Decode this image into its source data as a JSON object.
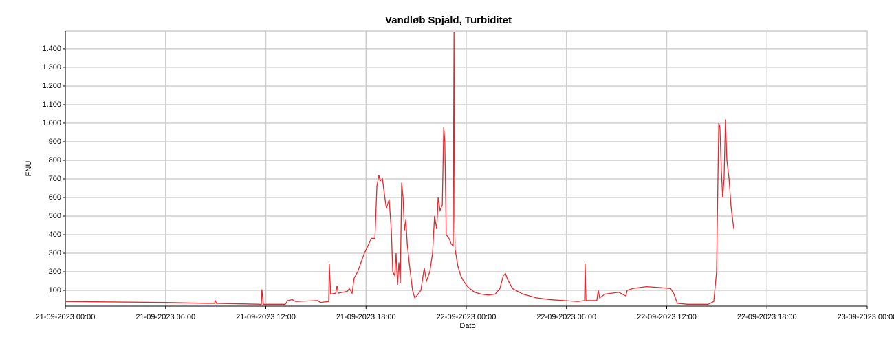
{
  "chart_data": {
    "type": "line",
    "title": "Vandløb Spjald, Turbiditet",
    "x_label": "Dato",
    "y_label": "FNU",
    "grid": true,
    "xlim": [
      "2023-09-21T00:00",
      "2023-09-23T00:00"
    ],
    "xticks": [
      {
        "value": "2023-09-21T00:00",
        "label": "21-09-2023 00:00"
      },
      {
        "value": "2023-09-21T06:00",
        "label": "21-09-2023 06:00"
      },
      {
        "value": "2023-09-21T12:00",
        "label": "21-09-2023 12:00"
      },
      {
        "value": "2023-09-21T18:00",
        "label": "21-09-2023 18:00"
      },
      {
        "value": "2023-09-22T00:00",
        "label": "22-09-2023 00:00"
      },
      {
        "value": "2023-09-22T06:00",
        "label": "22-09-2023 06:00"
      },
      {
        "value": "2023-09-22T12:00",
        "label": "22-09-2023 12:00"
      },
      {
        "value": "2023-09-22T18:00",
        "label": "22-09-2023 18:00"
      },
      {
        "value": "2023-09-23T00:00",
        "label": "23-09-2023 00:00"
      }
    ],
    "ylim": [
      15,
      1496
    ],
    "yticks": [
      100,
      200,
      300,
      400,
      500,
      600,
      700,
      800,
      900,
      {
        "value": 1000,
        "label": "1.000"
      },
      {
        "value": 1100,
        "label": "1.100"
      },
      {
        "value": 1200,
        "label": "1.200"
      },
      {
        "value": 1300,
        "label": "1.300"
      },
      {
        "value": 1400,
        "label": "1.400"
      }
    ],
    "x": [
      "2023-09-21T00:00",
      "2023-09-21T02:16",
      "2023-09-21T05:58",
      "2023-09-21T08:26",
      "2023-09-21T08:56",
      "2023-09-21T08:58",
      "2023-09-21T09:03",
      "2023-09-21T11:44",
      "2023-09-21T11:46",
      "2023-09-21T11:51",
      "2023-09-21T13:10",
      "2023-09-21T13:18",
      "2023-09-21T13:35",
      "2023-09-21T13:47",
      "2023-09-21T15:06",
      "2023-09-21T15:16",
      "2023-09-21T15:46",
      "2023-09-21T15:48",
      "2023-09-21T15:53",
      "2023-09-21T16:11",
      "2023-09-21T16:16",
      "2023-09-21T16:20",
      "2023-09-21T16:53",
      "2023-09-21T17:00",
      "2023-09-21T17:10",
      "2023-09-21T17:17",
      "2023-09-21T17:30",
      "2023-09-21T17:42",
      "2023-09-21T17:54",
      "2023-09-21T18:07",
      "2023-09-21T18:19",
      "2023-09-21T18:32",
      "2023-09-21T18:39",
      "2023-09-21T18:46",
      "2023-09-21T18:51",
      "2023-09-21T18:59",
      "2023-09-21T19:04",
      "2023-09-21T19:13",
      "2023-09-21T19:23",
      "2023-09-21T19:31",
      "2023-09-21T19:36",
      "2023-09-21T19:43",
      "2023-09-21T19:48",
      "2023-09-21T19:53",
      "2023-09-21T19:58",
      "2023-09-21T20:03",
      "2023-09-21T20:08",
      "2023-09-21T20:13",
      "2023-09-21T20:18",
      "2023-09-21T20:23",
      "2023-09-21T20:28",
      "2023-09-21T20:35",
      "2023-09-21T20:47",
      "2023-09-21T20:55",
      "2023-09-21T21:02",
      "2023-09-21T21:17",
      "2023-09-21T21:29",
      "2023-09-21T21:37",
      "2023-09-21T21:49",
      "2023-09-21T21:59",
      "2023-09-21T22:06",
      "2023-09-21T22:14",
      "2023-09-21T22:19",
      "2023-09-21T22:26",
      "2023-09-21T22:34",
      "2023-09-21T22:39",
      "2023-09-21T22:43",
      "2023-09-21T22:48",
      "2023-09-21T22:58",
      "2023-09-21T23:06",
      "2023-09-21T23:13",
      "2023-09-21T23:16",
      "2023-09-21T23:18",
      "2023-09-21T23:20",
      "2023-09-21T23:30",
      "2023-09-21T23:40",
      "2023-09-21T23:50",
      "2023-09-22T00:05",
      "2023-09-22T00:17",
      "2023-09-22T00:30",
      "2023-09-22T00:54",
      "2023-09-22T01:19",
      "2023-09-22T01:44",
      "2023-09-22T02:01",
      "2023-09-22T02:13",
      "2023-09-22T02:21",
      "2023-09-22T02:28",
      "2023-09-22T02:46",
      "2023-09-22T03:23",
      "2023-09-22T04:12",
      "2023-09-22T05:01",
      "2023-09-22T05:51",
      "2023-09-22T06:40",
      "2023-09-22T07:05",
      "2023-09-22T07:07",
      "2023-09-22T07:10",
      "2023-09-22T07:49",
      "2023-09-22T07:54",
      "2023-09-22T07:59",
      "2023-09-22T08:19",
      "2023-09-22T09:08",
      "2023-09-22T09:33",
      "2023-09-22T09:38",
      "2023-09-22T09:58",
      "2023-09-22T10:22",
      "2023-09-22T10:47",
      "2023-09-22T11:37",
      "2023-09-22T12:14",
      "2023-09-22T12:26",
      "2023-09-22T12:38",
      "2023-09-22T13:15",
      "2023-09-22T14:29",
      "2023-09-22T14:49",
      "2023-09-22T14:59",
      "2023-09-22T15:07",
      "2023-09-22T15:11",
      "2023-09-22T15:16",
      "2023-09-22T15:21",
      "2023-09-22T15:26",
      "2023-09-22T15:31",
      "2023-09-22T15:36",
      "2023-09-22T15:44",
      "2023-09-22T15:51",
      "2023-09-22T16:01"
    ],
    "series": [
      {
        "color": "#e8262b",
        "values": [
          40,
          38,
          35,
          30,
          30,
          45,
          30,
          25,
          105,
          25,
          25,
          45,
          50,
          40,
          45,
          35,
          40,
          245,
          80,
          85,
          125,
          85,
          95,
          110,
          85,
          165,
          200,
          250,
          300,
          340,
          380,
          380,
          660,
          720,
          690,
          700,
          640,
          540,
          590,
          420,
          200,
          180,
          300,
          130,
          250,
          140,
          680,
          600,
          420,
          480,
          350,
          250,
          100,
          60,
          70,
          100,
          220,
          150,
          200,
          300,
          500,
          430,
          600,
          530,
          560,
          980,
          900,
          400,
          380,
          350,
          340,
          1490,
          500,
          320,
          230,
          180,
          150,
          120,
          105,
          90,
          80,
          75,
          80,
          110,
          180,
          190,
          160,
          110,
          80,
          60,
          50,
          45,
          40,
          45,
          245,
          45,
          45,
          100,
          60,
          80,
          90,
          70,
          100,
          110,
          115,
          120,
          115,
          110,
          80,
          30,
          25,
          25,
          40,
          200,
          1000,
          980,
          750,
          600,
          700,
          1020,
          800,
          700,
          550,
          430
        ]
      }
    ]
  }
}
